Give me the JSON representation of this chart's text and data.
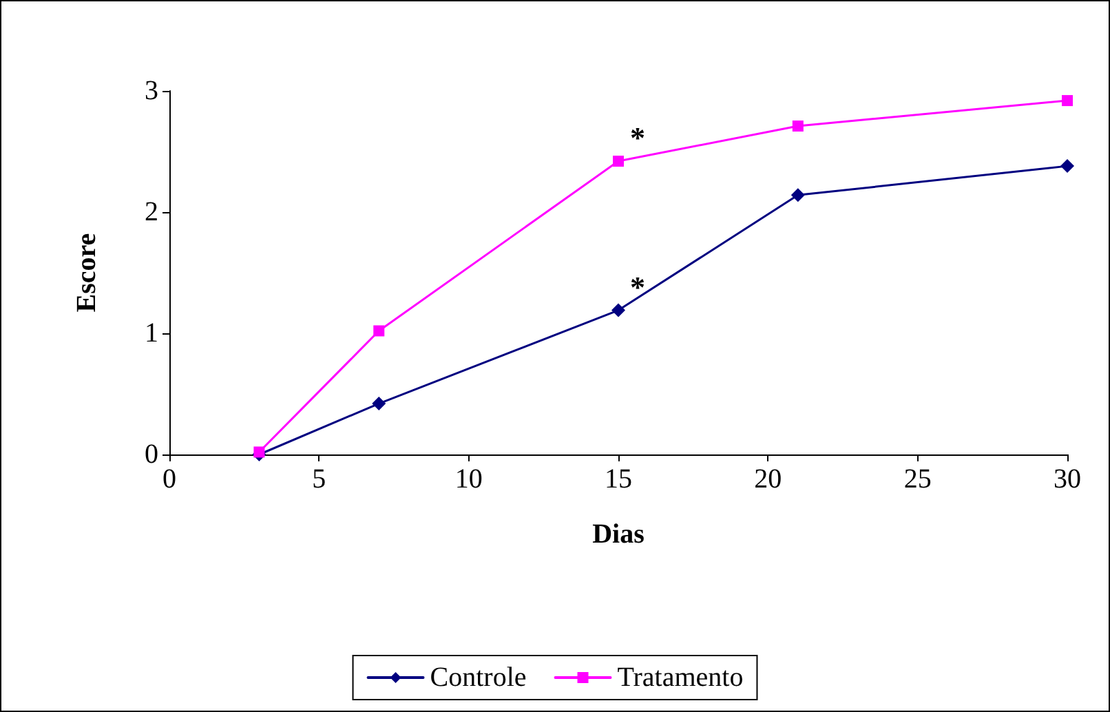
{
  "chart_data": {
    "type": "line",
    "xlabel": "Dias",
    "ylabel": "Escore",
    "xlim": [
      0,
      30
    ],
    "xticks": [
      0,
      5,
      10,
      15,
      20,
      25,
      30
    ],
    "ylim": [
      0,
      3
    ],
    "yticks": [
      0,
      1,
      2,
      3
    ],
    "grid": false,
    "legend": "bottom",
    "line_style": "solid",
    "series": [
      {
        "name": "Controle",
        "color": "#000080",
        "marker": "diamond",
        "x": [
          3,
          7,
          15,
          21,
          30
        ],
        "values": [
          0,
          0.42,
          1.19,
          2.14,
          2.38
        ]
      },
      {
        "name": "Tratamento",
        "color": "#ff00ff",
        "marker": "square",
        "x": [
          3,
          7,
          15,
          21,
          30
        ],
        "values": [
          0.02,
          1.02,
          2.42,
          2.71,
          2.92
        ]
      }
    ],
    "annotations": [
      {
        "text": "*",
        "x": 15,
        "y": 2.42
      },
      {
        "text": "*",
        "x": 15,
        "y": 1.19
      }
    ]
  }
}
